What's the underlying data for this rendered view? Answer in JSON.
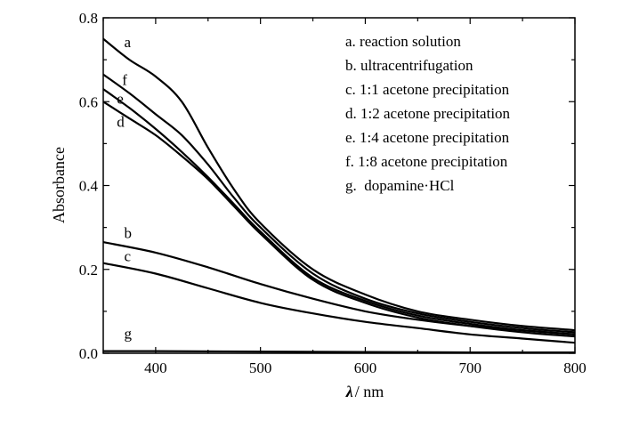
{
  "chart_data": {
    "type": "line",
    "xlabel_symbol": "λ",
    "xlabel_unit": "/ nm",
    "ylabel": "Absorbance",
    "xlim": [
      350,
      800
    ],
    "ylim": [
      0,
      0.8
    ],
    "xticks": [
      400,
      500,
      600,
      700,
      800
    ],
    "yticks": [
      0.0,
      0.2,
      0.4,
      0.6,
      0.8
    ],
    "xtick_labels": [
      "400",
      "500",
      "600",
      "700",
      "800"
    ],
    "ytick_labels": [
      "0.0",
      "0.2",
      "0.4",
      "0.6",
      "0.8"
    ],
    "legend_position": "top-right",
    "legend": [
      "a. reaction solution",
      "b. ultracentrifugation",
      "c. 1:1 acetone precipitation",
      "d. 1:2 acetone precipitation",
      "e. 1:4 acetone precipitation",
      "f.  1:8 acetone precipitation",
      "g.  dopamine·HCl"
    ],
    "series": [
      {
        "name": "a",
        "x": [
          350,
          375,
          400,
          425,
          450,
          475,
          500,
          550,
          600,
          650,
          700,
          750,
          800
        ],
        "values": [
          0.75,
          0.7,
          0.66,
          0.6,
          0.49,
          0.39,
          0.31,
          0.2,
          0.14,
          0.1,
          0.08,
          0.065,
          0.055
        ]
      },
      {
        "name": "f",
        "x": [
          350,
          375,
          400,
          425,
          450,
          475,
          500,
          550,
          600,
          650,
          700,
          750,
          800
        ],
        "values": [
          0.665,
          0.62,
          0.57,
          0.52,
          0.45,
          0.37,
          0.3,
          0.19,
          0.13,
          0.095,
          0.075,
          0.06,
          0.05
        ]
      },
      {
        "name": "e",
        "x": [
          350,
          375,
          400,
          425,
          450,
          475,
          500,
          550,
          600,
          650,
          700,
          750,
          800
        ],
        "values": [
          0.63,
          0.585,
          0.535,
          0.48,
          0.42,
          0.355,
          0.29,
          0.18,
          0.125,
          0.09,
          0.07,
          0.055,
          0.045
        ]
      },
      {
        "name": "d",
        "x": [
          350,
          375,
          400,
          425,
          450,
          475,
          500,
          550,
          600,
          650,
          700,
          750,
          800
        ],
        "values": [
          0.6,
          0.56,
          0.52,
          0.47,
          0.415,
          0.35,
          0.285,
          0.175,
          0.12,
          0.085,
          0.065,
          0.05,
          0.04
        ]
      },
      {
        "name": "b",
        "x": [
          350,
          400,
          450,
          500,
          550,
          600,
          650,
          700,
          750,
          800
        ],
        "values": [
          0.265,
          0.24,
          0.205,
          0.165,
          0.13,
          0.1,
          0.08,
          0.065,
          0.055,
          0.045
        ]
      },
      {
        "name": "c",
        "x": [
          350,
          400,
          450,
          500,
          550,
          600,
          650,
          700,
          750,
          800
        ],
        "values": [
          0.215,
          0.19,
          0.155,
          0.12,
          0.095,
          0.075,
          0.06,
          0.045,
          0.035,
          0.025
        ]
      },
      {
        "name": "g",
        "x": [
          350,
          400,
          500,
          600,
          700,
          800
        ],
        "values": [
          0.005,
          0.005,
          0.004,
          0.003,
          0.002,
          0.002
        ]
      }
    ],
    "curve_labels": [
      {
        "text": "a",
        "x": 370,
        "y": 0.73
      },
      {
        "text": "f",
        "x": 368,
        "y": 0.64
      },
      {
        "text": "e",
        "x": 363,
        "y": 0.595
      },
      {
        "text": "d",
        "x": 363,
        "y": 0.54
      },
      {
        "text": "b",
        "x": 370,
        "y": 0.275
      },
      {
        "text": "c",
        "x": 370,
        "y": 0.22
      },
      {
        "text": "g",
        "x": 370,
        "y": 0.035
      }
    ],
    "line_color": "#000000"
  }
}
